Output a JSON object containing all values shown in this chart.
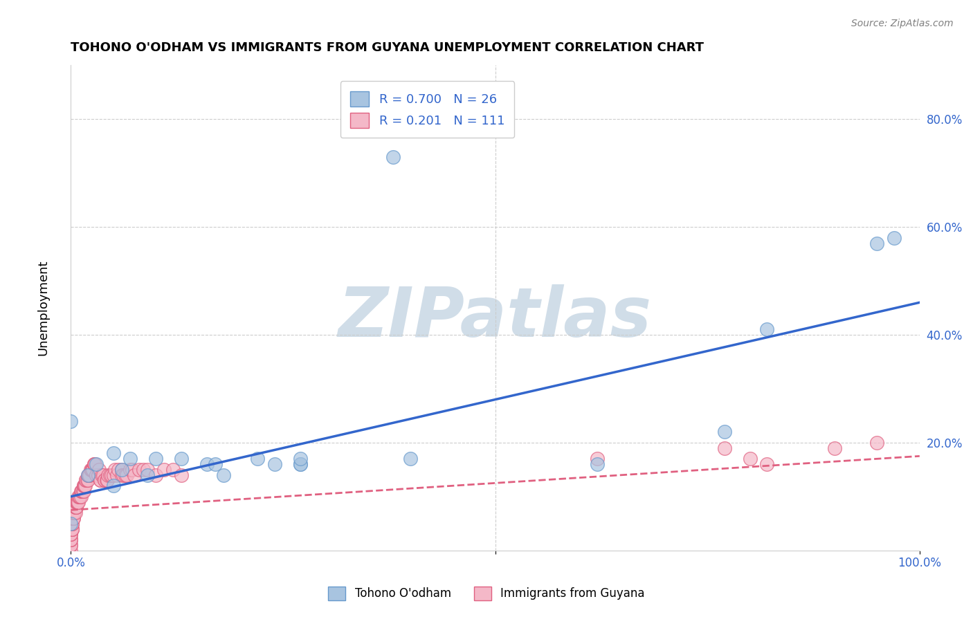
{
  "title": "TOHONO O'ODHAM VS IMMIGRANTS FROM GUYANA UNEMPLOYMENT CORRELATION CHART",
  "source": "Source: ZipAtlas.com",
  "ylabel": "Unemployment",
  "xlabel_ticks": [
    "0.0%",
    "100.0%"
  ],
  "ytick_labels": [
    "80.0%",
    "60.0%",
    "40.0%",
    "20.0%"
  ],
  "ytick_positions": [
    0.8,
    0.6,
    0.4,
    0.2
  ],
  "legend_blue_label": "Tohono O'odham",
  "legend_pink_label": "Immigrants from Guyana",
  "r_blue": "0.700",
  "n_blue": "26",
  "r_pink": "0.201",
  "n_pink": "111",
  "blue_color": "#a8c4e0",
  "blue_edge": "#6699cc",
  "blue_line_color": "#3366cc",
  "pink_color": "#f4b8c8",
  "pink_edge": "#e06080",
  "pink_line_color": "#e06080",
  "background_color": "#ffffff",
  "grid_color": "#cccccc",
  "watermark_text": "ZIPatlas",
  "watermark_color": "#d0dde8",
  "blue_scatter_x": [
    0.38,
    0.0,
    0.02,
    0.03,
    0.05,
    0.05,
    0.06,
    0.07,
    0.09,
    0.1,
    0.13,
    0.16,
    0.17,
    0.18,
    0.22,
    0.24,
    0.27,
    0.27,
    0.27,
    0.4,
    0.62,
    0.77,
    0.82,
    0.95,
    0.97,
    0.0
  ],
  "blue_scatter_y": [
    0.73,
    0.24,
    0.14,
    0.16,
    0.18,
    0.12,
    0.15,
    0.17,
    0.14,
    0.17,
    0.17,
    0.16,
    0.16,
    0.14,
    0.17,
    0.16,
    0.16,
    0.16,
    0.17,
    0.17,
    0.16,
    0.22,
    0.41,
    0.57,
    0.58,
    0.05
  ],
  "pink_scatter_x": [
    0.0,
    0.0,
    0.0,
    0.0,
    0.0,
    0.0,
    0.0,
    0.0,
    0.0,
    0.0,
    0.001,
    0.001,
    0.001,
    0.001,
    0.001,
    0.001,
    0.001,
    0.002,
    0.002,
    0.002,
    0.003,
    0.003,
    0.003,
    0.003,
    0.004,
    0.004,
    0.004,
    0.005,
    0.005,
    0.005,
    0.006,
    0.006,
    0.006,
    0.007,
    0.007,
    0.008,
    0.008,
    0.009,
    0.009,
    0.01,
    0.01,
    0.01,
    0.01,
    0.012,
    0.012,
    0.013,
    0.013,
    0.014,
    0.015,
    0.015,
    0.015,
    0.016,
    0.016,
    0.017,
    0.018,
    0.018,
    0.019,
    0.02,
    0.02,
    0.021,
    0.022,
    0.022,
    0.023,
    0.024,
    0.025,
    0.025,
    0.026,
    0.027,
    0.027,
    0.028,
    0.03,
    0.03,
    0.032,
    0.032,
    0.033,
    0.035,
    0.035,
    0.036,
    0.038,
    0.04,
    0.04,
    0.042,
    0.043,
    0.044,
    0.046,
    0.048,
    0.05,
    0.052,
    0.054,
    0.056,
    0.06,
    0.06,
    0.062,
    0.064,
    0.066,
    0.07,
    0.072,
    0.075,
    0.08,
    0.085,
    0.09,
    0.1,
    0.11,
    0.12,
    0.13,
    0.62,
    0.77,
    0.8,
    0.82,
    0.9,
    0.95
  ],
  "pink_scatter_y": [
    0.0,
    0.01,
    0.01,
    0.02,
    0.02,
    0.02,
    0.03,
    0.03,
    0.03,
    0.04,
    0.04,
    0.04,
    0.04,
    0.05,
    0.05,
    0.05,
    0.06,
    0.06,
    0.06,
    0.06,
    0.06,
    0.06,
    0.07,
    0.07,
    0.07,
    0.07,
    0.07,
    0.07,
    0.08,
    0.08,
    0.08,
    0.08,
    0.09,
    0.09,
    0.09,
    0.09,
    0.09,
    0.09,
    0.1,
    0.1,
    0.1,
    0.1,
    0.1,
    0.1,
    0.11,
    0.11,
    0.11,
    0.11,
    0.11,
    0.12,
    0.12,
    0.12,
    0.12,
    0.12,
    0.13,
    0.13,
    0.13,
    0.13,
    0.14,
    0.14,
    0.14,
    0.14,
    0.15,
    0.15,
    0.15,
    0.15,
    0.15,
    0.16,
    0.16,
    0.16,
    0.14,
    0.14,
    0.14,
    0.14,
    0.15,
    0.13,
    0.13,
    0.14,
    0.14,
    0.13,
    0.13,
    0.13,
    0.13,
    0.14,
    0.14,
    0.14,
    0.14,
    0.15,
    0.14,
    0.15,
    0.15,
    0.14,
    0.14,
    0.14,
    0.14,
    0.15,
    0.15,
    0.14,
    0.15,
    0.15,
    0.15,
    0.14,
    0.15,
    0.15,
    0.14,
    0.17,
    0.19,
    0.17,
    0.16,
    0.19,
    0.2
  ],
  "blue_trendline_x": [
    0.0,
    1.0
  ],
  "blue_trendline_y": [
    0.1,
    0.46
  ],
  "pink_trendline_x": [
    0.0,
    1.0
  ],
  "pink_trendline_y": [
    0.075,
    0.175
  ],
  "xlim": [
    0.0,
    1.0
  ],
  "ylim": [
    0.0,
    0.9
  ]
}
